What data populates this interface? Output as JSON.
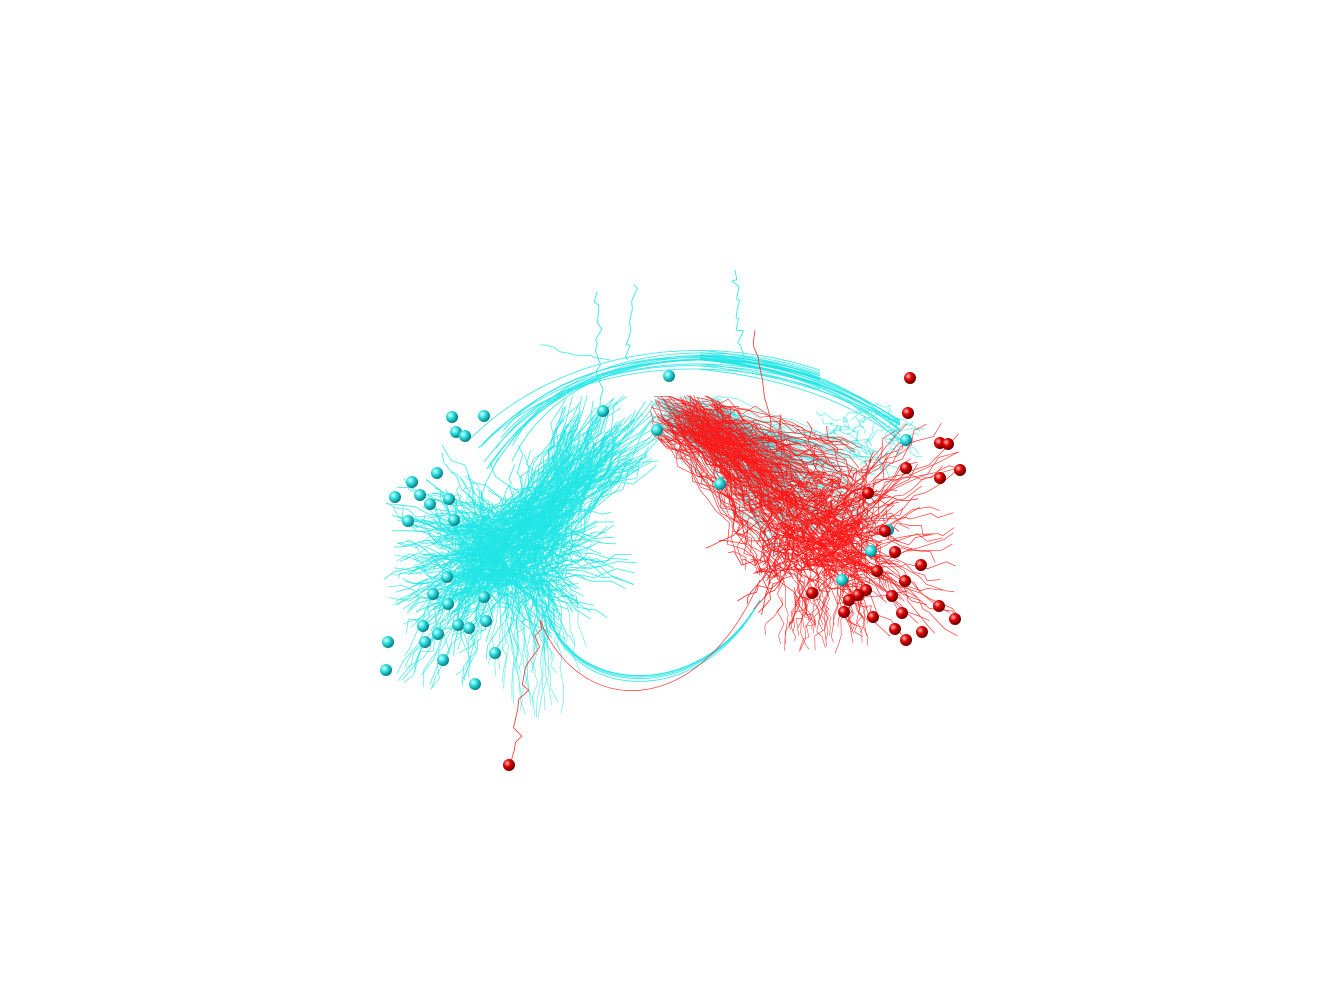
{
  "scene": {
    "description_free": true,
    "background": "#ffffff",
    "group_a": {
      "color": "#22e5e5",
      "soma_color": "#1fc8c8",
      "soma_highlight": "#bff8f8",
      "soma_count": 36
    },
    "group_b": {
      "color": "#ff1a1a",
      "soma_color": "#cc0000",
      "soma_highlight": "#ffb0b0",
      "soma_count": 36
    }
  }
}
